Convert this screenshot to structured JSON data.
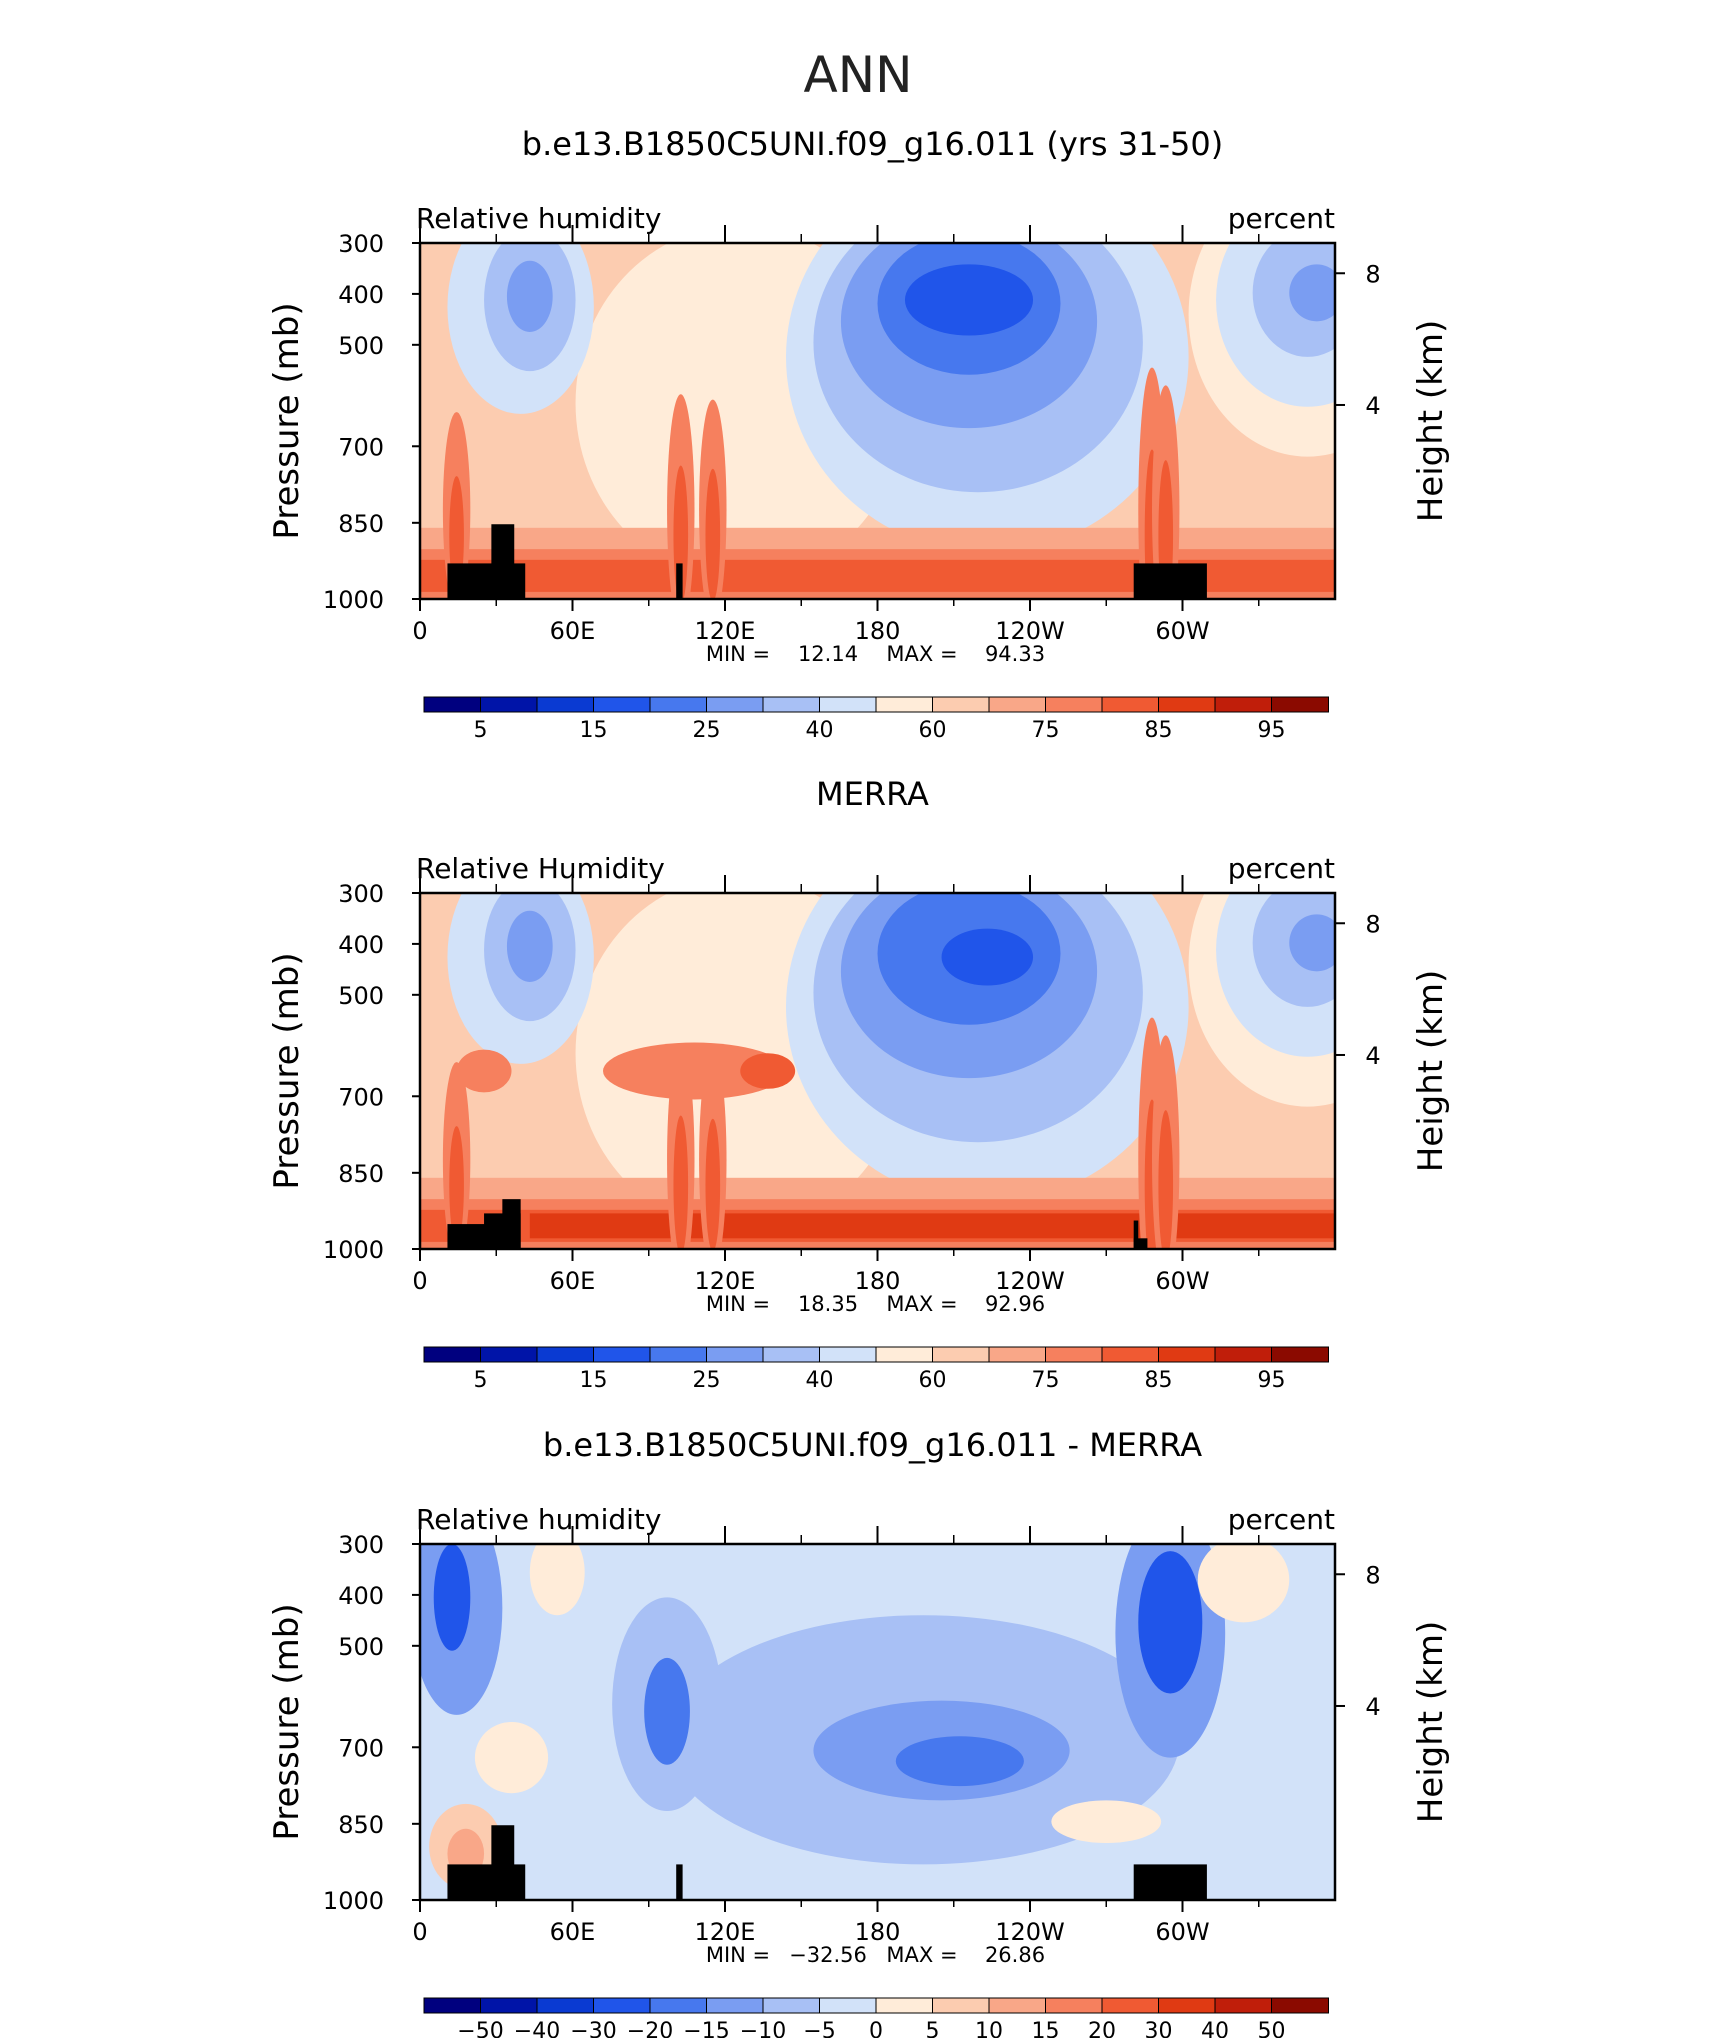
{
  "figure_title": "ANN",
  "panel_units": "percent",
  "y_axis": {
    "left_label": "Pressure (mb)",
    "right_label": "Height (km)",
    "left_ticks": [
      "300",
      "400",
      "500",
      "700",
      "850",
      "1000"
    ],
    "right_ticks": [
      "8",
      "4"
    ]
  },
  "x_axis": {
    "ticks": [
      "0",
      "60E",
      "120E",
      "180",
      "120W",
      "60W"
    ]
  },
  "colors": {
    "abs_palette": [
      "#00007f",
      "#0014a8",
      "#0a3ad2",
      "#2055ea",
      "#4778ee",
      "#7a9df2",
      "#a8c0f5",
      "#d2e2f9",
      "#ffecd9",
      "#fcccb0",
      "#f9a788",
      "#f6805e",
      "#f05a33",
      "#e03a13",
      "#c01e0a",
      "#8b0a00"
    ],
    "diff_palette": [
      "#00007f",
      "#0014a8",
      "#0a3ad2",
      "#2055ea",
      "#4778ee",
      "#7a9df2",
      "#a8c0f5",
      "#d2e2f9",
      "#ffecd9",
      "#fcccb0",
      "#f9a788",
      "#f6805e",
      "#f05a33",
      "#e03a13",
      "#c01e0a",
      "#8b0a00"
    ],
    "terrain": "#000000"
  },
  "chart_data": [
    {
      "type": "heatmap",
      "title": "b.e13.B1850C5UNI.f09_g16.011 (yrs 31-50)",
      "left_string": "Relative humidity",
      "right_string": "percent",
      "stats": {
        "min_label": "MIN =",
        "min": "12.14",
        "max_label": "MAX =",
        "max": "94.33"
      },
      "colorbar_labels": [
        "5",
        "15",
        "25",
        "40",
        "60",
        "75",
        "85",
        "95"
      ],
      "xlim": [
        0,
        360
      ],
      "ylim": [
        1000,
        300
      ]
    },
    {
      "type": "heatmap",
      "title": "MERRA",
      "left_string": "Relative Humidity",
      "right_string": "percent",
      "stats": {
        "min_label": "MIN =",
        "min": "18.35",
        "max_label": "MAX =",
        "max": "92.96"
      },
      "colorbar_labels": [
        "5",
        "15",
        "25",
        "40",
        "60",
        "75",
        "85",
        "95"
      ],
      "xlim": [
        0,
        360
      ],
      "ylim": [
        1000,
        300
      ]
    },
    {
      "type": "heatmap",
      "title": "b.e13.B1850C5UNI.f09_g16.011 - MERRA",
      "left_string": "Relative humidity",
      "right_string": "percent",
      "stats": {
        "min_label": "MIN =",
        "min": "−32.56",
        "max_label": "MAX =",
        "max": "26.86"
      },
      "colorbar_labels": [
        "−50",
        "−40",
        "−30",
        "−20",
        "−15",
        "−10",
        "−5",
        "0",
        "5",
        "10",
        "15",
        "20",
        "30",
        "40",
        "50"
      ],
      "xlim": [
        0,
        360
      ],
      "ylim": [
        1000,
        300
      ]
    }
  ]
}
